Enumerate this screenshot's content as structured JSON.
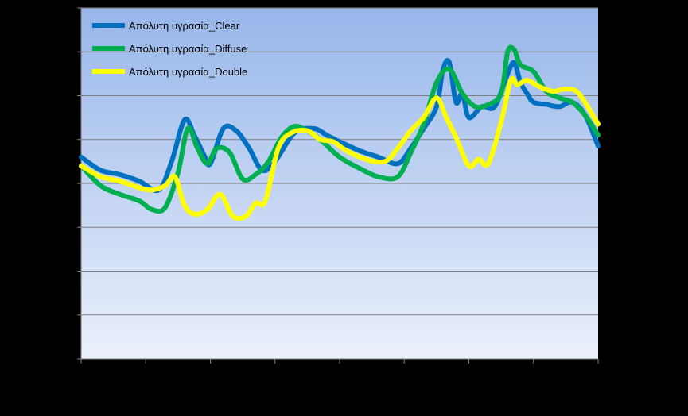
{
  "chart_data": {
    "type": "line",
    "title": "",
    "xlabel": "",
    "ylabel": "",
    "ylim": [
      0,
      8
    ],
    "xlim": [
      0,
      8
    ],
    "grid": true,
    "legend_position": "top-left",
    "series": [
      {
        "name": "Απόλυτη υγρασία_Clear",
        "color": "#0070C0",
        "x": [
          0,
          0.3,
          0.6,
          0.9,
          1.2,
          1.4,
          1.6,
          1.75,
          1.9,
          2.0,
          2.2,
          2.4,
          2.6,
          2.8,
          3.0,
          3.3,
          3.6,
          3.8,
          4.0,
          4.3,
          4.6,
          4.9,
          5.1,
          5.3,
          5.5,
          5.6,
          5.7,
          5.8,
          5.9,
          6.0,
          6.2,
          6.4,
          6.6,
          6.7,
          6.8,
          6.9,
          7.0,
          7.2,
          7.4,
          7.6,
          7.8,
          8.0
        ],
        "values": [
          4.6,
          4.3,
          4.2,
          4.05,
          3.85,
          4.5,
          5.45,
          5.1,
          4.65,
          4.45,
          5.25,
          5.2,
          4.8,
          4.3,
          4.5,
          5.15,
          5.25,
          5.1,
          4.95,
          4.75,
          4.6,
          4.45,
          4.8,
          5.25,
          5.75,
          6.6,
          6.75,
          5.85,
          6.05,
          5.5,
          5.75,
          5.75,
          6.5,
          6.75,
          6.3,
          6.05,
          5.85,
          5.8,
          5.75,
          5.85,
          5.55,
          4.85
        ]
      },
      {
        "name": "Απόλυτη υγρασία_Diffuse",
        "color": "#00B050",
        "x": [
          0,
          0.3,
          0.6,
          0.9,
          1.1,
          1.3,
          1.5,
          1.65,
          1.8,
          1.95,
          2.1,
          2.3,
          2.5,
          2.7,
          2.9,
          3.1,
          3.3,
          3.5,
          3.7,
          4.0,
          4.3,
          4.6,
          4.9,
          5.1,
          5.3,
          5.5,
          5.7,
          5.9,
          6.1,
          6.3,
          6.5,
          6.6,
          6.7,
          6.8,
          7.0,
          7.2,
          7.4,
          7.6,
          7.8,
          8.0
        ],
        "values": [
          4.4,
          3.95,
          3.75,
          3.6,
          3.4,
          3.45,
          4.25,
          5.25,
          4.8,
          4.45,
          4.8,
          4.7,
          4.1,
          4.2,
          4.5,
          5.05,
          5.3,
          5.2,
          5.0,
          4.6,
          4.35,
          4.15,
          4.15,
          4.7,
          5.35,
          6.3,
          6.6,
          6.05,
          5.75,
          5.8,
          6.05,
          7.0,
          7.05,
          6.7,
          6.55,
          6.1,
          5.95,
          5.85,
          5.55,
          5.1
        ]
      },
      {
        "name": "Απόλυτη υγρασία_Double",
        "color": "#FFFF00",
        "x": [
          0,
          0.3,
          0.6,
          0.9,
          1.1,
          1.3,
          1.45,
          1.6,
          1.75,
          1.95,
          2.15,
          2.35,
          2.55,
          2.7,
          2.85,
          3.05,
          3.25,
          3.5,
          3.7,
          3.9,
          4.1,
          4.4,
          4.7,
          4.9,
          5.1,
          5.3,
          5.5,
          5.65,
          5.8,
          6.0,
          6.15,
          6.3,
          6.5,
          6.65,
          6.75,
          6.9,
          7.1,
          7.3,
          7.5,
          7.7,
          8.0
        ],
        "values": [
          4.4,
          4.15,
          4.05,
          3.9,
          3.85,
          3.95,
          4.15,
          3.5,
          3.3,
          3.4,
          3.75,
          3.25,
          3.25,
          3.55,
          3.6,
          4.8,
          5.15,
          5.2,
          5.0,
          4.95,
          4.75,
          4.55,
          4.5,
          4.8,
          5.2,
          5.5,
          5.95,
          5.5,
          5.05,
          4.4,
          4.55,
          4.45,
          5.4,
          6.35,
          6.25,
          6.35,
          6.2,
          6.1,
          6.15,
          6.05,
          5.35
        ]
      }
    ]
  }
}
